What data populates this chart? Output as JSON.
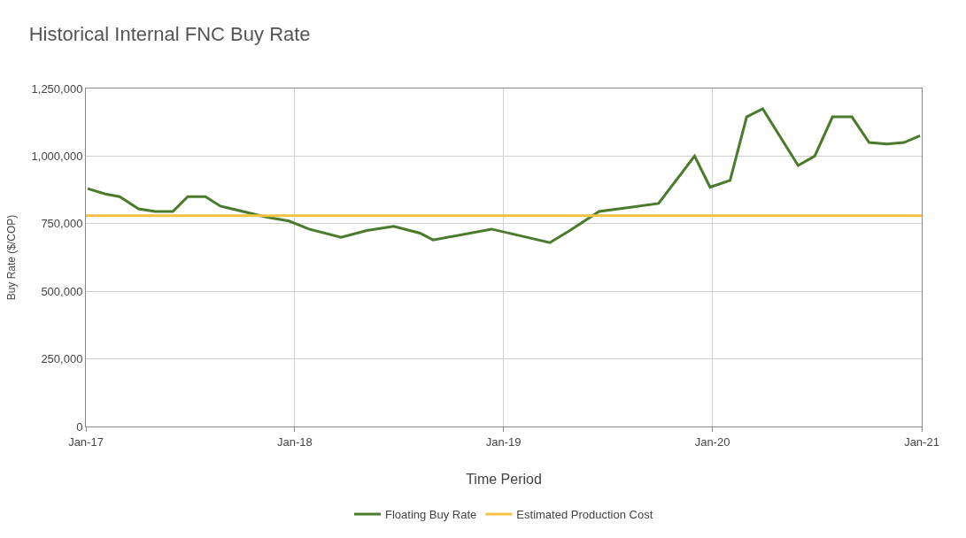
{
  "chart_data": {
    "type": "line",
    "title": "Historical Internal FNC Buy Rate",
    "xlabel": "Time Period",
    "ylabel": "Buy Rate ($/COP)",
    "series": [
      {
        "name": "Floating Buy Rate",
        "color": "#4a7a2c",
        "x": [
          "2017-01-04",
          "2017-02-04",
          "2017-03-01",
          "2017-04-03",
          "2017-05-02",
          "2017-06-02",
          "2017-06-28",
          "2017-07-29",
          "2017-08-24",
          "2017-11-12",
          "2017-12-22",
          "2018-01-26",
          "2018-03-23",
          "2018-05-07",
          "2018-06-23",
          "2018-08-08",
          "2018-08-31",
          "2018-12-11",
          "2019-03-23",
          "2019-04-27",
          "2019-06-17",
          "2019-08-08",
          "2019-09-29",
          "2019-12-01",
          "2019-12-28",
          "2020-02-01",
          "2020-03-01",
          "2020-03-29",
          "2020-05-30",
          "2020-06-28",
          "2020-07-29",
          "2020-09-01",
          "2020-10-01",
          "2020-11-01",
          "2020-12-01",
          "2020-12-29"
        ],
        "values": [
          880000,
          860000,
          850000,
          805000,
          795000,
          795000,
          850000,
          850000,
          815000,
          775000,
          760000,
          730000,
          700000,
          725000,
          740000,
          715000,
          690000,
          730000,
          680000,
          725000,
          795000,
          810000,
          825000,
          1000000,
          885000,
          910000,
          1145000,
          1175000,
          965000,
          1000000,
          1145000,
          1145000,
          1050000,
          1045000,
          1050000,
          1075000
        ]
      },
      {
        "name": "Estimated Production Cost",
        "color": "#f5c242",
        "x": [
          "2017-01-01",
          "2021-01-01"
        ],
        "values": [
          780000,
          780000
        ]
      }
    ],
    "xlim": [
      "2017-01-01",
      "2021-01-01"
    ],
    "xticks": [
      {
        "value": "2017-01-01",
        "label": "Jan-17"
      },
      {
        "value": "2018-01-01",
        "label": "Jan-18"
      },
      {
        "value": "2019-01-01",
        "label": "Jan-19"
      },
      {
        "value": "2020-01-01",
        "label": "Jan-20"
      },
      {
        "value": "2021-01-01",
        "label": "Jan-21"
      }
    ],
    "ylim": [
      0,
      1250000
    ],
    "yticks": [
      {
        "value": 0,
        "label": "0"
      },
      {
        "value": 250000,
        "label": "250,000"
      },
      {
        "value": 500000,
        "label": "500,000"
      },
      {
        "value": 750000,
        "label": "750,000"
      },
      {
        "value": 1000000,
        "label": "1,000,000"
      },
      {
        "value": 1250000,
        "label": "1,250,000"
      }
    ],
    "grid": true,
    "legend": "bottom",
    "marker": "none",
    "line_style": "solid"
  }
}
